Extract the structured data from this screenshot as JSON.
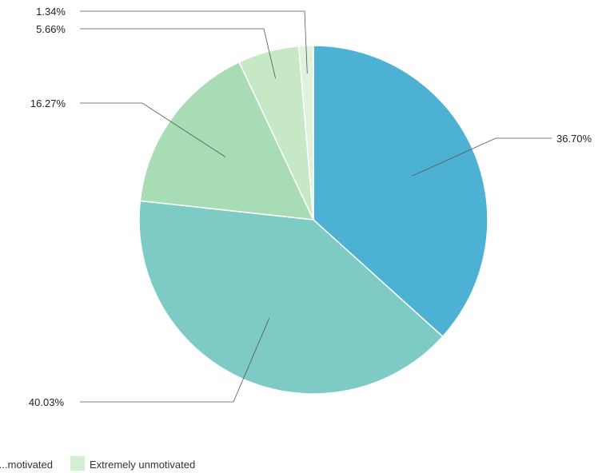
{
  "chart_data": {
    "type": "pie",
    "slices": [
      {
        "label": "36.70%",
        "value": 36.7,
        "color": "#4db1d3"
      },
      {
        "label": "40.03%",
        "value": 40.03,
        "color": "#7dcbc4"
      },
      {
        "label": "16.27%",
        "value": 16.27,
        "color": "#a8dcb5"
      },
      {
        "label": "5.66%",
        "value": 5.66,
        "color": "#c6e8c4"
      },
      {
        "label": "1.34%",
        "value": 1.34,
        "color": "#e0f1dc"
      }
    ],
    "legend": [
      {
        "label": "...motivated",
        "color": "#c6e8c4"
      },
      {
        "label": "Extremely unmotivated",
        "color": "#d4eed2"
      }
    ],
    "legend_placement": "bottom",
    "leader_line_color": "#555555"
  }
}
